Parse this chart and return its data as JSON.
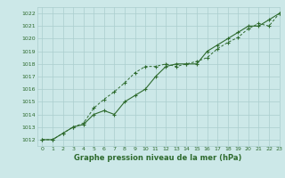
{
  "line1_x": [
    0,
    1,
    2,
    3,
    4,
    5,
    6,
    7,
    8,
    9,
    10,
    11,
    12,
    13,
    14,
    15,
    16,
    17,
    18,
    19,
    20,
    21,
    22,
    23
  ],
  "line1_y": [
    1012,
    1012,
    1012.5,
    1013,
    1013.2,
    1014,
    1014.3,
    1014.0,
    1015.0,
    1015.5,
    1016.0,
    1017.0,
    1017.8,
    1018.0,
    1018.0,
    1018.0,
    1019.0,
    1019.5,
    1020.0,
    1020.5,
    1021.0,
    1021.0,
    1021.5,
    1022.0
  ],
  "line2_x": [
    0,
    1,
    2,
    3,
    4,
    5,
    6,
    7,
    8,
    9,
    10,
    11,
    12,
    13,
    14,
    15,
    16,
    17,
    18,
    19,
    20,
    21,
    22,
    23
  ],
  "line2_y": [
    1012,
    1012,
    1012.5,
    1013,
    1013.3,
    1014.5,
    1015.2,
    1015.8,
    1016.5,
    1017.3,
    1017.8,
    1017.8,
    1018.0,
    1017.8,
    1018.0,
    1018.2,
    1018.5,
    1019.2,
    1019.7,
    1020.1,
    1020.8,
    1021.2,
    1021.0,
    1022.0
  ],
  "line_color": "#2d6a2d",
  "bg_color": "#cce8e8",
  "grid_color": "#aacece",
  "xlabel": "Graphe pression niveau de la mer (hPa)",
  "ylim": [
    1011.5,
    1022.5
  ],
  "xlim": [
    -0.5,
    23
  ],
  "yticks": [
    1012,
    1013,
    1014,
    1015,
    1016,
    1017,
    1018,
    1019,
    1020,
    1021,
    1022
  ],
  "xticks": [
    0,
    1,
    2,
    3,
    4,
    5,
    6,
    7,
    8,
    9,
    10,
    11,
    12,
    13,
    14,
    15,
    16,
    17,
    18,
    19,
    20,
    21,
    22,
    23
  ]
}
